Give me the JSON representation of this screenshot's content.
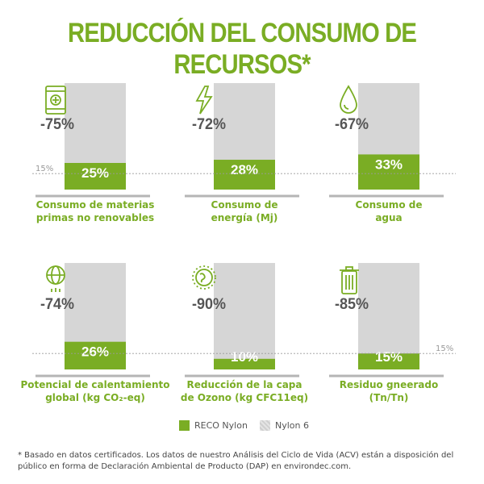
{
  "title": "REDUCCIÓN DEL CONSUMO DE RECURSOS*",
  "colors": {
    "green": "#7aad24",
    "gray_bar": "#d6d6d6",
    "baseline": "#b5b5b5",
    "text_dark": "#555555"
  },
  "chart_data": {
    "type": "bar",
    "units": "% relative to Nylon 6",
    "ylim": [
      0,
      100
    ],
    "series": [
      {
        "name": "RECO Nylon",
        "color": "#7aad24",
        "values": [
          25,
          28,
          33,
          26,
          10,
          15
        ]
      },
      {
        "name": "Nylon 6",
        "color": "#d6d6d6",
        "values": [
          100,
          100,
          100,
          100,
          100,
          100
        ]
      }
    ],
    "panels": [
      {
        "icon": "barrel-icon",
        "reduction": "-75%",
        "value": 25,
        "value_label": "25%",
        "label_lines": [
          "Consumo de materias",
          "primas no renovables"
        ]
      },
      {
        "icon": "lightning-icon",
        "reduction": "-72%",
        "value": 28,
        "value_label": "28%",
        "label_lines": [
          "Consumo de",
          "energía (Mj)"
        ]
      },
      {
        "icon": "water-drop-icon",
        "reduction": "-67%",
        "value": 33,
        "value_label": "33%",
        "label_lines": [
          "Consumo de",
          "agua"
        ]
      },
      {
        "icon": "globe-rain-icon",
        "reduction": "-74%",
        "value": 26,
        "value_label": "26%",
        "label_lines": [
          "Potencial de calentamiento",
          "global (kg CO₂-eq)"
        ]
      },
      {
        "icon": "earth-ozone-icon",
        "reduction": "-90%",
        "value": 10,
        "value_label": "10%",
        "label_lines": [
          "Reducción de la capa",
          "de Ozono (kg CFC11eq)"
        ]
      },
      {
        "icon": "trash-can-icon",
        "reduction": "-85%",
        "value": 15,
        "value_label": "15%",
        "label_lines": [
          "Residuo gneerado",
          "(Tn/Tn)"
        ]
      }
    ],
    "reference_line": {
      "value": 15,
      "label": "15%"
    }
  },
  "legend": [
    {
      "label": "RECO Nylon",
      "color": "#7aad24",
      "pattern": false
    },
    {
      "label": "Nylon 6",
      "color": "#d6d6d6",
      "pattern": true
    }
  ],
  "footnote": "* Basado en datos certificados. Los datos de nuestro Análisis del Ciclo de Vida (ACV) están a disposición del público en forma de Declaración Ambiental de Producto (DAP) en environdec.com."
}
